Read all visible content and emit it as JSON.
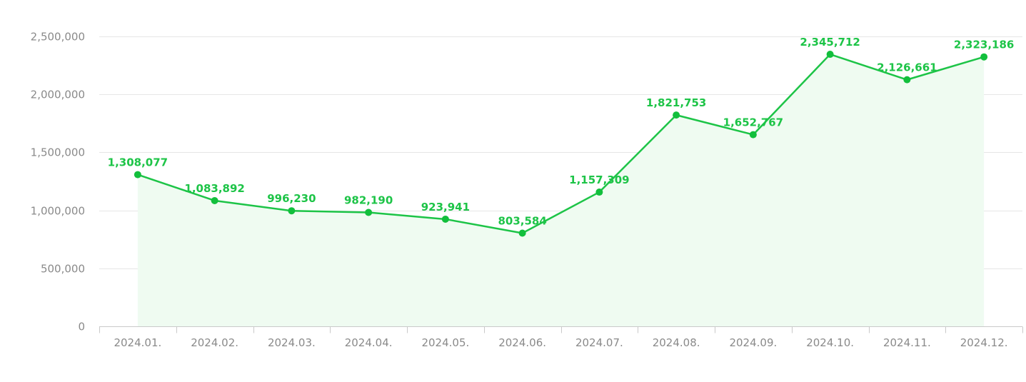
{
  "chart_data": {
    "type": "area",
    "title": "",
    "xlabel": "",
    "ylabel": "",
    "categories": [
      "2024.01.",
      "2024.02.",
      "2024.03.",
      "2024.04.",
      "2024.05.",
      "2024.06.",
      "2024.07.",
      "2024.08.",
      "2024.09.",
      "2024.10.",
      "2024.11.",
      "2024.12."
    ],
    "series": [
      {
        "values": [
          1308077,
          1083892,
          996230,
          982190,
          923941,
          803584,
          1157309,
          1821753,
          1652767,
          2345712,
          2126661,
          2323186
        ],
        "labels": [
          "1,308,077",
          "1,083,892",
          "996,230",
          "982,190",
          "923,941",
          "803,584",
          "1,157,309",
          "1,821,753",
          "1,652,767",
          "2,345,712",
          "2,126,661",
          "2,323,186"
        ]
      }
    ],
    "y_ticks": [
      0,
      500000,
      1000000,
      1500000,
      2000000,
      2500000
    ],
    "y_tick_labels": [
      "0",
      "500,000",
      "1,000,000",
      "1,500,000",
      "2,000,000",
      "2,500,000"
    ],
    "ylim": [
      0,
      2500000
    ],
    "grid": true,
    "legend": "none",
    "colors": {
      "line": "#1dc447",
      "point": "#12bf3c",
      "area": "#effbf1",
      "label": "#1dc447"
    }
  }
}
